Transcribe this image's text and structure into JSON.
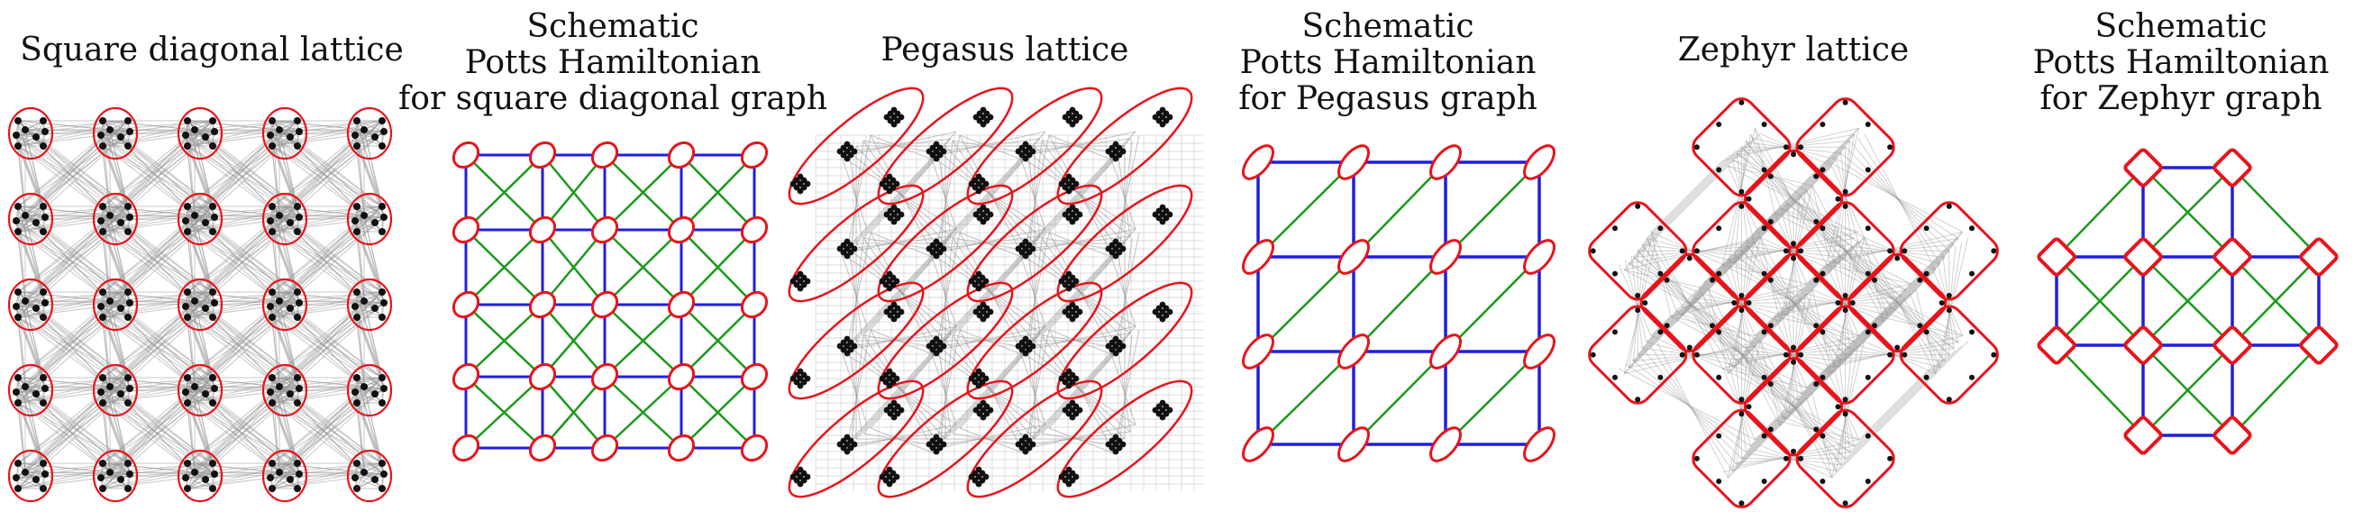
{
  "panels": [
    {
      "id": "square-diagonal-lattice",
      "title_lines": [
        "Square diagonal lattice"
      ]
    },
    {
      "id": "schematic-square",
      "title_lines": [
        "Schematic",
        "Potts Hamiltonian",
        "for square diagonal graph"
      ]
    },
    {
      "id": "pegasus-lattice",
      "title_lines": [
        "Pegasus lattice"
      ]
    },
    {
      "id": "schematic-pegasus",
      "title_lines": [
        "Schematic",
        "Potts Hamiltonian",
        "for Pegasus graph"
      ]
    },
    {
      "id": "zephyr-lattice",
      "title_lines": [
        "Zephyr lattice"
      ]
    },
    {
      "id": "schematic-zephyr",
      "title_lines": [
        "Schematic",
        "Potts Hamiltonian",
        "for Zephyr graph"
      ]
    }
  ],
  "colors": {
    "cluster": "#e8141b",
    "horizontal_vertical_edge": "#1f1fe0",
    "diagonal_edge": "#1a9a1a",
    "coupler": "#9a9a9a",
    "qubit": "#111111"
  }
}
